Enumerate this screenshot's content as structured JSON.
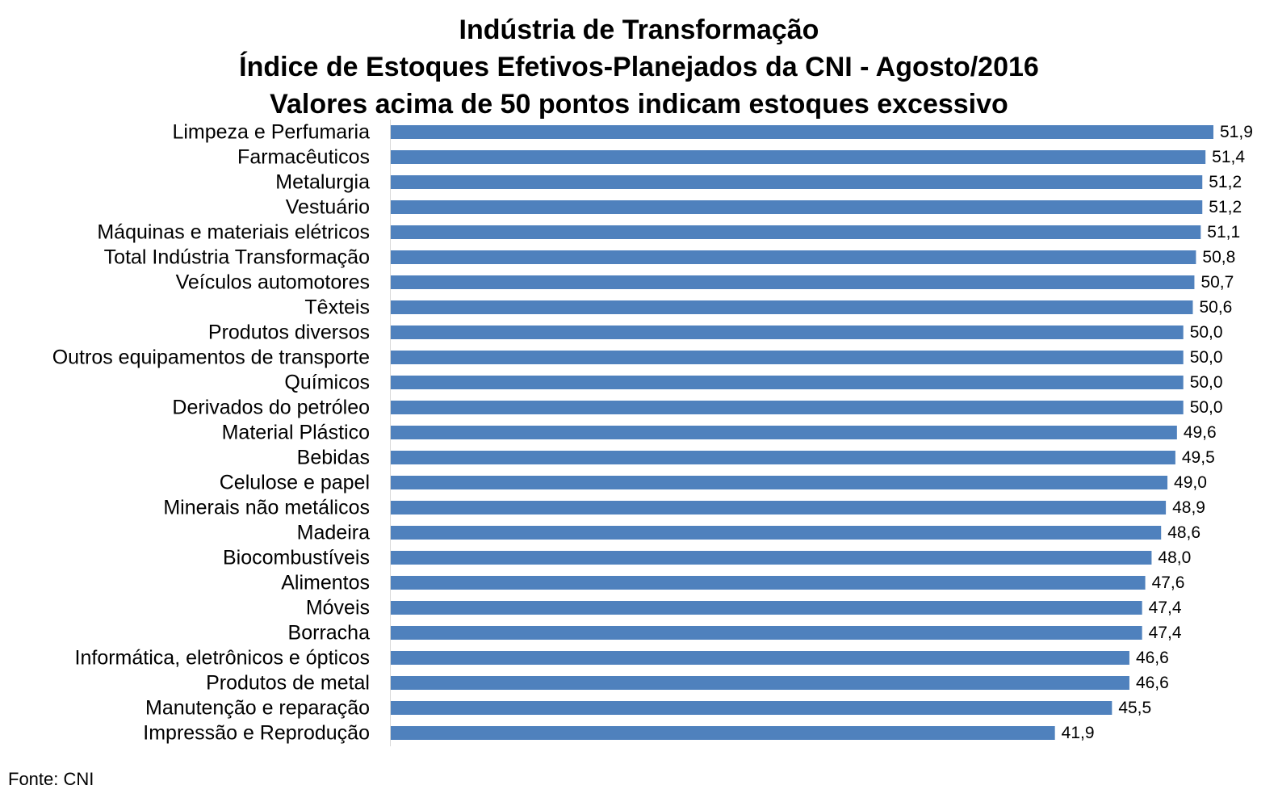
{
  "chart_data": {
    "type": "bar",
    "orientation": "horizontal",
    "title_lines": [
      "Indústria de Transformação",
      "Índice de Estoques Efetivos-Planejados da CNI - Agosto/2016",
      "Valores acima de 50 pontos indicam estoques excessivo"
    ],
    "xlabel": "",
    "ylabel": "",
    "categories": [
      "Limpeza e Perfumaria",
      "Farmacêuticos",
      "Metalurgia",
      "Vestuário",
      "Máquinas e materiais elétricos",
      "Total Indústria Transformação",
      "Veículos automotores",
      "Têxteis",
      "Produtos diversos",
      "Outros equipamentos de transporte",
      "Químicos",
      "Derivados do petróleo",
      "Material Plástico",
      "Bebidas",
      "Celulose e papel",
      "Minerais não metálicos",
      "Madeira",
      "Biocombustíveis",
      "Alimentos",
      "Móveis",
      "Borracha",
      "Informática, eletrônicos e ópticos",
      "Produtos de metal",
      "Manutenção e reparação",
      "Impressão e Reprodução"
    ],
    "values": [
      51.9,
      51.4,
      51.2,
      51.2,
      51.1,
      50.8,
      50.7,
      50.6,
      50.0,
      50.0,
      50.0,
      50.0,
      49.6,
      49.5,
      49.0,
      48.9,
      48.6,
      48.0,
      47.6,
      47.4,
      47.4,
      46.6,
      46.6,
      45.5,
      41.9
    ],
    "value_labels": [
      "51,9",
      "51,4",
      "51,2",
      "51,2",
      "51,1",
      "50,8",
      "50,7",
      "50,6",
      "50,0",
      "50,0",
      "50,0",
      "50,0",
      "49,6",
      "49,5",
      "49,0",
      "48,9",
      "48,6",
      "48,0",
      "47,6",
      "47,4",
      "47,4",
      "46,6",
      "46,6",
      "45,5",
      "41,9"
    ],
    "xlim": [
      0,
      51.9
    ],
    "grid": false,
    "legend": "none",
    "bar_color": "#4F81BD"
  },
  "source": "Fonte: CNI"
}
